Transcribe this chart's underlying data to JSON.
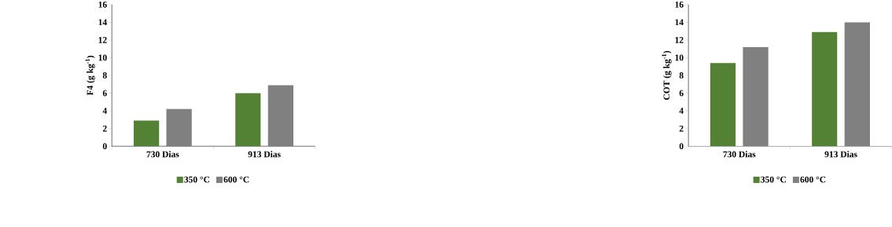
{
  "chart_data": [
    {
      "type": "bar",
      "ylabel": "F4 (g kg$^{-1}$)",
      "categories": [
        "730 Dias",
        "913 Dias"
      ],
      "ylim": [
        0,
        16
      ],
      "yticks": [
        0,
        2,
        4,
        6,
        8,
        10,
        12,
        14,
        16
      ],
      "legend": "bottom",
      "grid": false,
      "series": [
        {
          "name": "350 °C",
          "color": "#548235",
          "values": [
            2.9,
            6.0
          ]
        },
        {
          "name": "600 °C",
          "color": "#808080",
          "values": [
            4.2,
            6.9
          ]
        }
      ]
    },
    {
      "type": "bar",
      "ylabel": "COT (g kg$^{-1}$)",
      "categories": [
        "730 Dias",
        "913 Dias"
      ],
      "ylim": [
        0,
        16
      ],
      "yticks": [
        0,
        2,
        4,
        6,
        8,
        10,
        12,
        14,
        16
      ],
      "legend": "bottom",
      "grid": false,
      "series": [
        {
          "name": "350 °C",
          "color": "#548235",
          "values": [
            9.4,
            12.9
          ]
        },
        {
          "name": "600 °C",
          "color": "#808080",
          "values": [
            11.2,
            14.0
          ]
        }
      ]
    }
  ]
}
